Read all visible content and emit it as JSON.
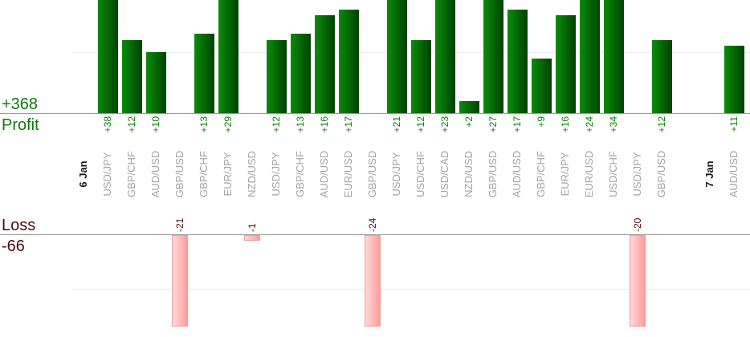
{
  "summary": {
    "profit_total_label": "+368",
    "profit_section_label": "Profit",
    "loss_section_label": "Loss",
    "loss_total_label": "-66"
  },
  "colors": {
    "profit_text": "#0d7a0d",
    "loss_text": "#4a0d0d",
    "pair_label": "#a3a3a3",
    "date_label": "#1a1a1a",
    "axis_line": "#999999",
    "gridline": "#ededed",
    "profit_bar_left": "#0a8c0a",
    "profit_bar_right": "#014101",
    "loss_bar_left": "#ffd9d9",
    "loss_bar_right": "#ff9b9b",
    "loss_bar_border": "#ee9f9f"
  },
  "chart_data": {
    "type": "bar",
    "title": "",
    "xlabel": "",
    "ylabel": "",
    "grid": "on",
    "sections": [
      {
        "name": "Profit",
        "total": 368,
        "total_label": "+368",
        "gridline_value": 10,
        "visible_axis_clip": 19
      },
      {
        "name": "Loss",
        "total": -66,
        "total_label": "-66",
        "gridline_value": -10,
        "visible_axis_clip": -16
      }
    ],
    "columns": [
      {
        "kind": "date",
        "label": "6 Jan"
      },
      {
        "kind": "trade",
        "pair": "USD/JPY",
        "value": 38,
        "value_label": "+38"
      },
      {
        "kind": "trade",
        "pair": "GBP/CHF",
        "value": 12,
        "value_label": "+12"
      },
      {
        "kind": "trade",
        "pair": "AUD/USD",
        "value": 10,
        "value_label": "+10"
      },
      {
        "kind": "trade",
        "pair": "GBP/USD",
        "value": -21,
        "value_label": "-21"
      },
      {
        "kind": "trade",
        "pair": "GBP/CHF",
        "value": 13,
        "value_label": "+13"
      },
      {
        "kind": "trade",
        "pair": "EUR/JPY",
        "value": 29,
        "value_label": "+29"
      },
      {
        "kind": "trade",
        "pair": "NZD/USD",
        "value": -1,
        "value_label": "-1"
      },
      {
        "kind": "trade",
        "pair": "USD/JPY",
        "value": 12,
        "value_label": "+12"
      },
      {
        "kind": "trade",
        "pair": "GBP/CHF",
        "value": 13,
        "value_label": "+13"
      },
      {
        "kind": "trade",
        "pair": "AUD/USD",
        "value": 16,
        "value_label": "+16"
      },
      {
        "kind": "trade",
        "pair": "EUR/USD",
        "value": 17,
        "value_label": "+17"
      },
      {
        "kind": "trade",
        "pair": "GBP/USD",
        "value": -24,
        "value_label": "-24"
      },
      {
        "kind": "trade",
        "pair": "USD/JPY",
        "value": 21,
        "value_label": "+21"
      },
      {
        "kind": "trade",
        "pair": "USD/CHF",
        "value": 12,
        "value_label": "+12"
      },
      {
        "kind": "trade",
        "pair": "USD/CAD",
        "value": 23,
        "value_label": "+23"
      },
      {
        "kind": "trade",
        "pair": "NZD/USD",
        "value": 2,
        "value_label": "+2"
      },
      {
        "kind": "trade",
        "pair": "GBP/USD",
        "value": 27,
        "value_label": "+27"
      },
      {
        "kind": "trade",
        "pair": "AUD/USD",
        "value": 17,
        "value_label": "+17"
      },
      {
        "kind": "trade",
        "pair": "GBP/CHF",
        "value": 9,
        "value_label": "+9"
      },
      {
        "kind": "trade",
        "pair": "EUR/JPY",
        "value": 16,
        "value_label": "+16"
      },
      {
        "kind": "trade",
        "pair": "EUR/USD",
        "value": 24,
        "value_label": "+24"
      },
      {
        "kind": "trade",
        "pair": "USD/CHF",
        "value": 34,
        "value_label": "+34"
      },
      {
        "kind": "trade",
        "pair": "USD/JPY",
        "value": -20,
        "value_label": "-20"
      },
      {
        "kind": "trade",
        "pair": "GBP/USD",
        "value": 12,
        "value_label": "+12"
      },
      {
        "kind": "empty"
      },
      {
        "kind": "date",
        "label": "7 Jan"
      },
      {
        "kind": "trade",
        "pair": "AUD/USD",
        "value": 11,
        "value_label": "+11"
      }
    ]
  }
}
